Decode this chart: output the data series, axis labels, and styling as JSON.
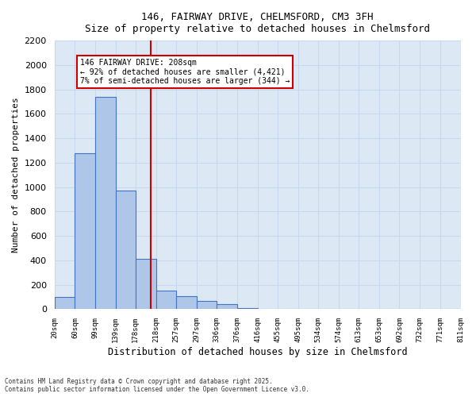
{
  "title_line1": "146, FAIRWAY DRIVE, CHELMSFORD, CM3 3FH",
  "title_line2": "Size of property relative to detached houses in Chelmsford",
  "xlabel": "Distribution of detached houses by size in Chelmsford",
  "ylabel": "Number of detached properties",
  "footnote1": "Contains HM Land Registry data © Crown copyright and database right 2025.",
  "footnote2": "Contains public sector information licensed under the Open Government Licence v3.0.",
  "annotation_line1": "146 FAIRWAY DRIVE: 208sqm",
  "annotation_line2": "← 92% of detached houses are smaller (4,421)",
  "annotation_line3": "7% of semi-detached houses are larger (344) →",
  "subject_value": 208,
  "bar_edges": [
    20,
    60,
    99,
    139,
    178,
    218,
    257,
    297,
    336,
    376,
    416,
    455,
    495,
    534,
    574,
    613,
    653,
    692,
    732,
    771,
    811
  ],
  "bar_heights": [
    100,
    1280,
    1740,
    970,
    410,
    150,
    110,
    65,
    40,
    10,
    0,
    0,
    0,
    0,
    0,
    0,
    0,
    0,
    0,
    0
  ],
  "bar_color": "#aec6e8",
  "bar_edge_color": "#4472c4",
  "grid_color": "#c8d8ee",
  "background_color": "#dce9f5",
  "ref_line_color": "#cc0000",
  "annotation_box_color": "#cc0000",
  "ylim": [
    0,
    2200
  ],
  "ytick_step": 200
}
